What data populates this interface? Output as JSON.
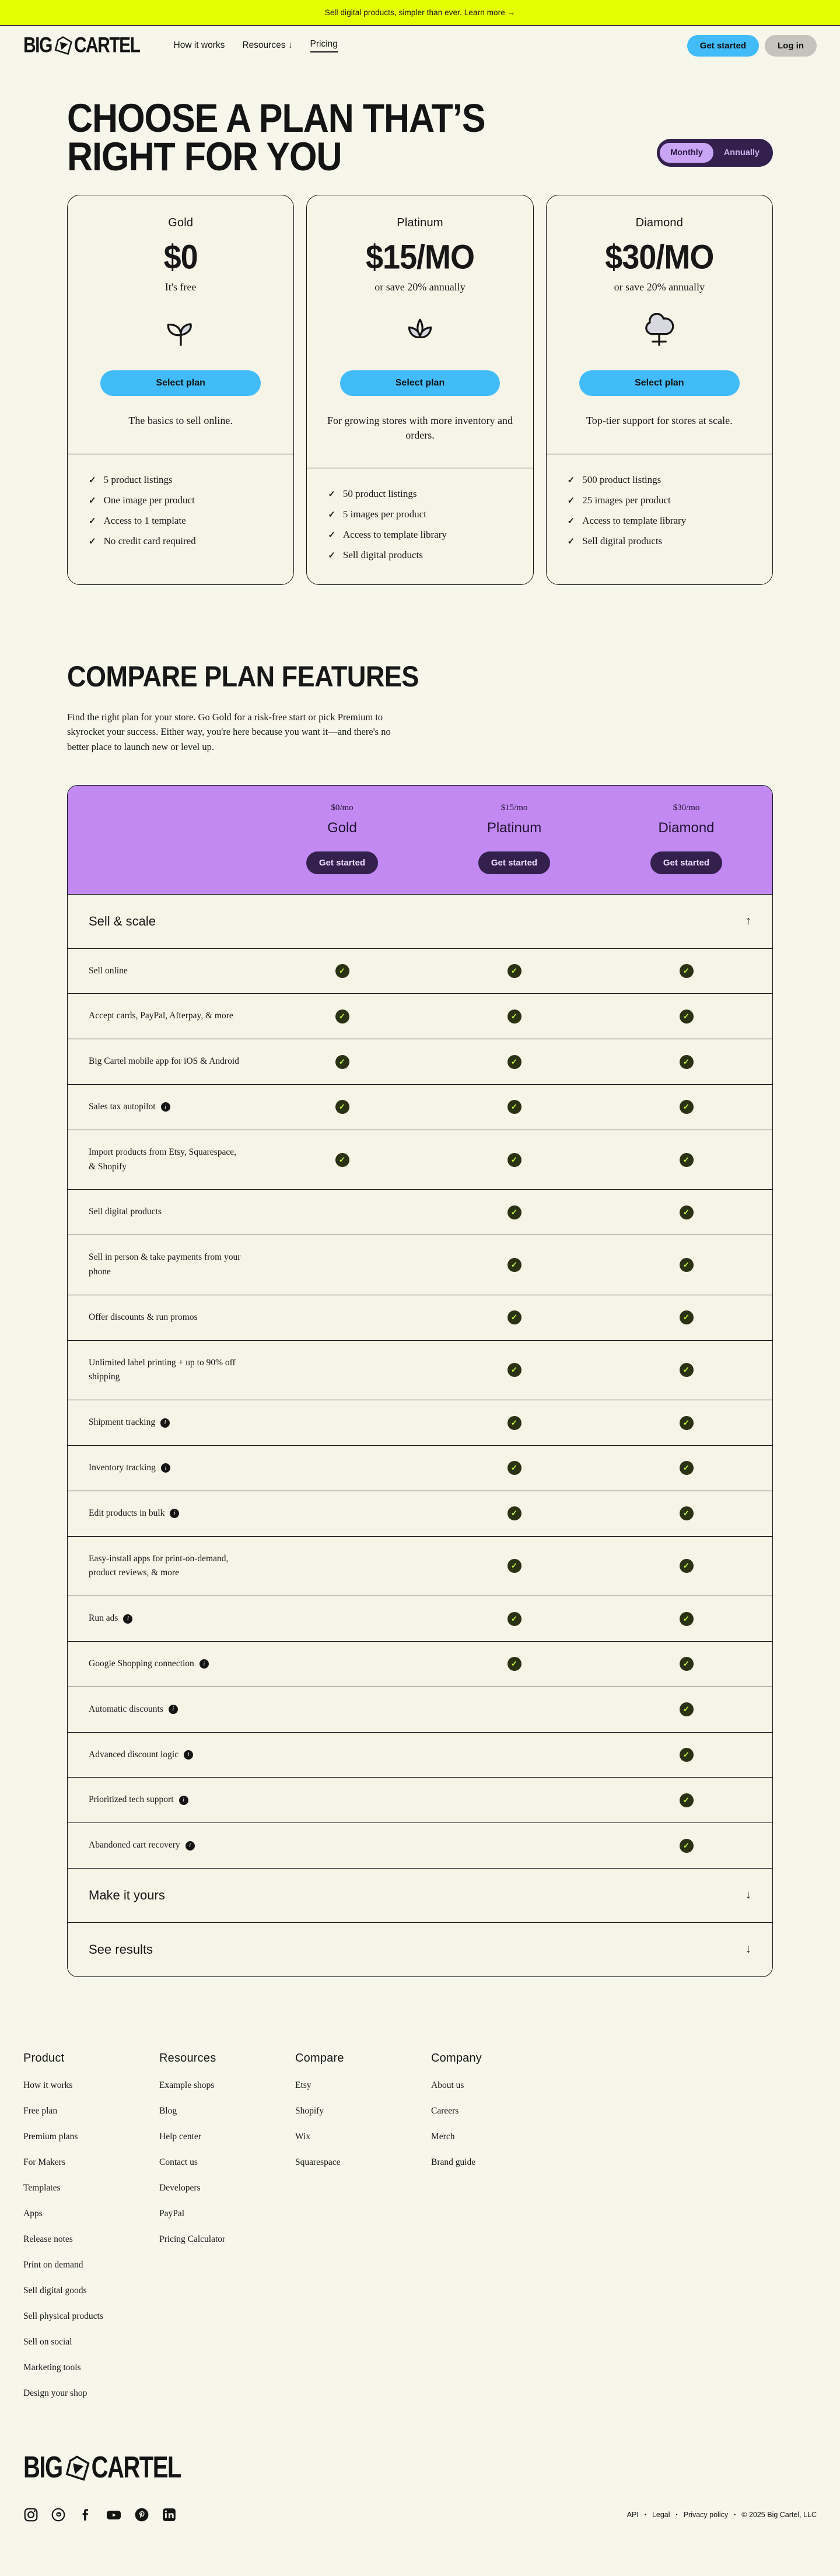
{
  "banner": {
    "text": "Sell digital products, simpler than ever. Learn more →"
  },
  "header": {
    "logo_left": "BIG",
    "logo_right": "CARTEL",
    "nav": [
      {
        "label": "How it works",
        "active": false
      },
      {
        "label": "Resources ↓",
        "active": false
      },
      {
        "label": "Pricing",
        "active": true
      }
    ],
    "get_started": "Get started",
    "log_in": "Log in"
  },
  "hero": {
    "title_line1": "CHOOSE A PLAN THAT’S",
    "title_line2": "RIGHT FOR YOU",
    "toggle": {
      "monthly": "Monthly",
      "annually": "Annually",
      "selected": "Monthly"
    }
  },
  "plans": [
    {
      "name": "Gold",
      "price": "$0",
      "subtitle": "It's free",
      "icon": "seedling-icon",
      "button": "Select plan",
      "description": "The basics to sell online.",
      "features": [
        "5 product listings",
        "One image per product",
        "Access to 1 template",
        "No credit card required"
      ]
    },
    {
      "name": "Platinum",
      "price": "$15/MO",
      "subtitle": "or save 20% annually",
      "icon": "lotus-icon",
      "button": "Select plan",
      "description": "For growing stores with more inventory and orders.",
      "features": [
        "50 product listings",
        "5 images per product",
        "Access to template library",
        "Sell digital products"
      ]
    },
    {
      "name": "Diamond",
      "price": "$30/MO",
      "subtitle": "or save 20% annually",
      "icon": "tree-icon",
      "button": "Select plan",
      "description": "Top-tier support for stores at scale.",
      "features": [
        "500 product listings",
        "25 images per product",
        "Access to template library",
        "Sell digital products"
      ]
    }
  ],
  "compare": {
    "title": "COMPARE PLAN FEATURES",
    "description": "Find the right plan for your store. Go Gold for a risk-free start or pick Premium to skyrocket your success. Either way, you're here because you want it—and there's no better place to launch new or level up.",
    "columns": [
      {
        "price": "$0/mo",
        "name": "Gold",
        "button": "Get started"
      },
      {
        "price": "$15/mo",
        "name": "Platinum",
        "button": "Get started"
      },
      {
        "price": "$30/mo",
        "name": "Diamond",
        "button": "Get started"
      }
    ],
    "sections": [
      {
        "label": "Sell & scale",
        "expanded": true,
        "arrow": "↑",
        "rows": [
          {
            "label": "Sell online",
            "info": false,
            "availability": [
              true,
              true,
              true
            ]
          },
          {
            "label": "Accept cards, PayPal, Afterpay, & more",
            "info": false,
            "availability": [
              true,
              true,
              true
            ]
          },
          {
            "label": "Big Cartel mobile app for iOS & Android",
            "info": false,
            "availability": [
              true,
              true,
              true
            ]
          },
          {
            "label": "Sales tax autopilot",
            "info": true,
            "availability": [
              true,
              true,
              true
            ]
          },
          {
            "label": "Import products from Etsy, Squarespace, & Shopify",
            "info": false,
            "availability": [
              true,
              true,
              true
            ]
          },
          {
            "label": "Sell digital products",
            "info": false,
            "availability": [
              false,
              true,
              true
            ]
          },
          {
            "label": "Sell in person & take payments from your phone",
            "info": false,
            "availability": [
              false,
              true,
              true
            ]
          },
          {
            "label": "Offer discounts & run promos",
            "info": false,
            "availability": [
              false,
              true,
              true
            ]
          },
          {
            "label": "Unlimited label printing + up to 90% off shipping",
            "info": false,
            "availability": [
              false,
              true,
              true
            ]
          },
          {
            "label": "Shipment tracking",
            "info": true,
            "availability": [
              false,
              true,
              true
            ]
          },
          {
            "label": "Inventory tracking",
            "info": true,
            "availability": [
              false,
              true,
              true
            ]
          },
          {
            "label": "Edit products in bulk",
            "info": true,
            "availability": [
              false,
              true,
              true
            ]
          },
          {
            "label": "Easy-install apps for print-on-demand, product reviews, & more",
            "info": false,
            "availability": [
              false,
              true,
              true
            ]
          },
          {
            "label": "Run ads",
            "info": true,
            "availability": [
              false,
              true,
              true
            ]
          },
          {
            "label": "Google Shopping connection",
            "info": true,
            "availability": [
              false,
              true,
              true
            ]
          },
          {
            "label": "Automatic discounts",
            "info": true,
            "availability": [
              false,
              false,
              true
            ]
          },
          {
            "label": "Advanced discount logic",
            "info": true,
            "availability": [
              false,
              false,
              true
            ]
          },
          {
            "label": "Prioritized tech support",
            "info": true,
            "availability": [
              false,
              false,
              true
            ]
          },
          {
            "label": "Abandoned cart recovery",
            "info": true,
            "availability": [
              false,
              false,
              true
            ]
          }
        ]
      },
      {
        "label": "Make it yours",
        "expanded": false,
        "arrow": "↓",
        "rows": []
      },
      {
        "label": "See results",
        "expanded": false,
        "arrow": "↓",
        "rows": []
      }
    ]
  },
  "footer": {
    "columns": [
      {
        "title": "Product",
        "links": [
          "How it works",
          "Free plan",
          "Premium plans",
          "For Makers",
          "Templates",
          "Apps",
          "Release notes",
          "Print on demand",
          "Sell digital goods",
          "Sell physical products",
          "Sell on social",
          "Marketing tools",
          "Design your shop"
        ]
      },
      {
        "title": "Resources",
        "links": [
          "Example shops",
          "Blog",
          "Help center",
          "Contact us",
          "Developers",
          "PayPal",
          "Pricing Calculator"
        ]
      },
      {
        "title": "Compare",
        "links": [
          "Etsy",
          "Shopify",
          "Wix",
          "Squarespace"
        ]
      },
      {
        "title": "Company",
        "links": [
          "About us",
          "Careers",
          "Merch",
          "Brand guide"
        ]
      }
    ],
    "social": [
      "instagram-icon",
      "threads-icon",
      "facebook-icon",
      "youtube-icon",
      "pinterest-icon",
      "linkedin-icon"
    ],
    "legal": [
      "API",
      "Legal",
      "Privacy policy",
      "© 2025 Big Cartel, LLC"
    ]
  },
  "colors": {
    "background": "#F7F6EB",
    "banner": "#E3FF02",
    "accent_blue": "#41BCF9",
    "gray_pill": "#C4C3BD",
    "purple_header": "#C289F2",
    "dark_purple": "#33204D",
    "light_purple": "#CBA5F5",
    "check_bg": "#2B3213",
    "check_mark": "#C3F53C",
    "text": "#171717"
  }
}
